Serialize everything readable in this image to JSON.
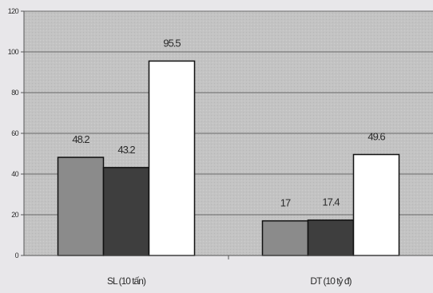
{
  "chart_data": {
    "type": "bar",
    "title": "",
    "xlabel": "",
    "ylabel": "",
    "categories": [
      "SL (10 tấn)",
      "DT (10 tỷ đ)"
    ],
    "series": [
      {
        "values": [
          48.2,
          17
        ]
      },
      {
        "values": [
          43.2,
          17.4
        ]
      },
      {
        "values": [
          95.5,
          49.6
        ]
      }
    ],
    "series_colors": [
      "#8b8b8b",
      "#3e3e3e",
      "#ffffff"
    ],
    "plot_background": "#c3c3c3",
    "ylim": [
      0,
      120
    ],
    "yticks": [
      0,
      20,
      40,
      60,
      80,
      100,
      120
    ],
    "grid": true,
    "legend": "none"
  }
}
